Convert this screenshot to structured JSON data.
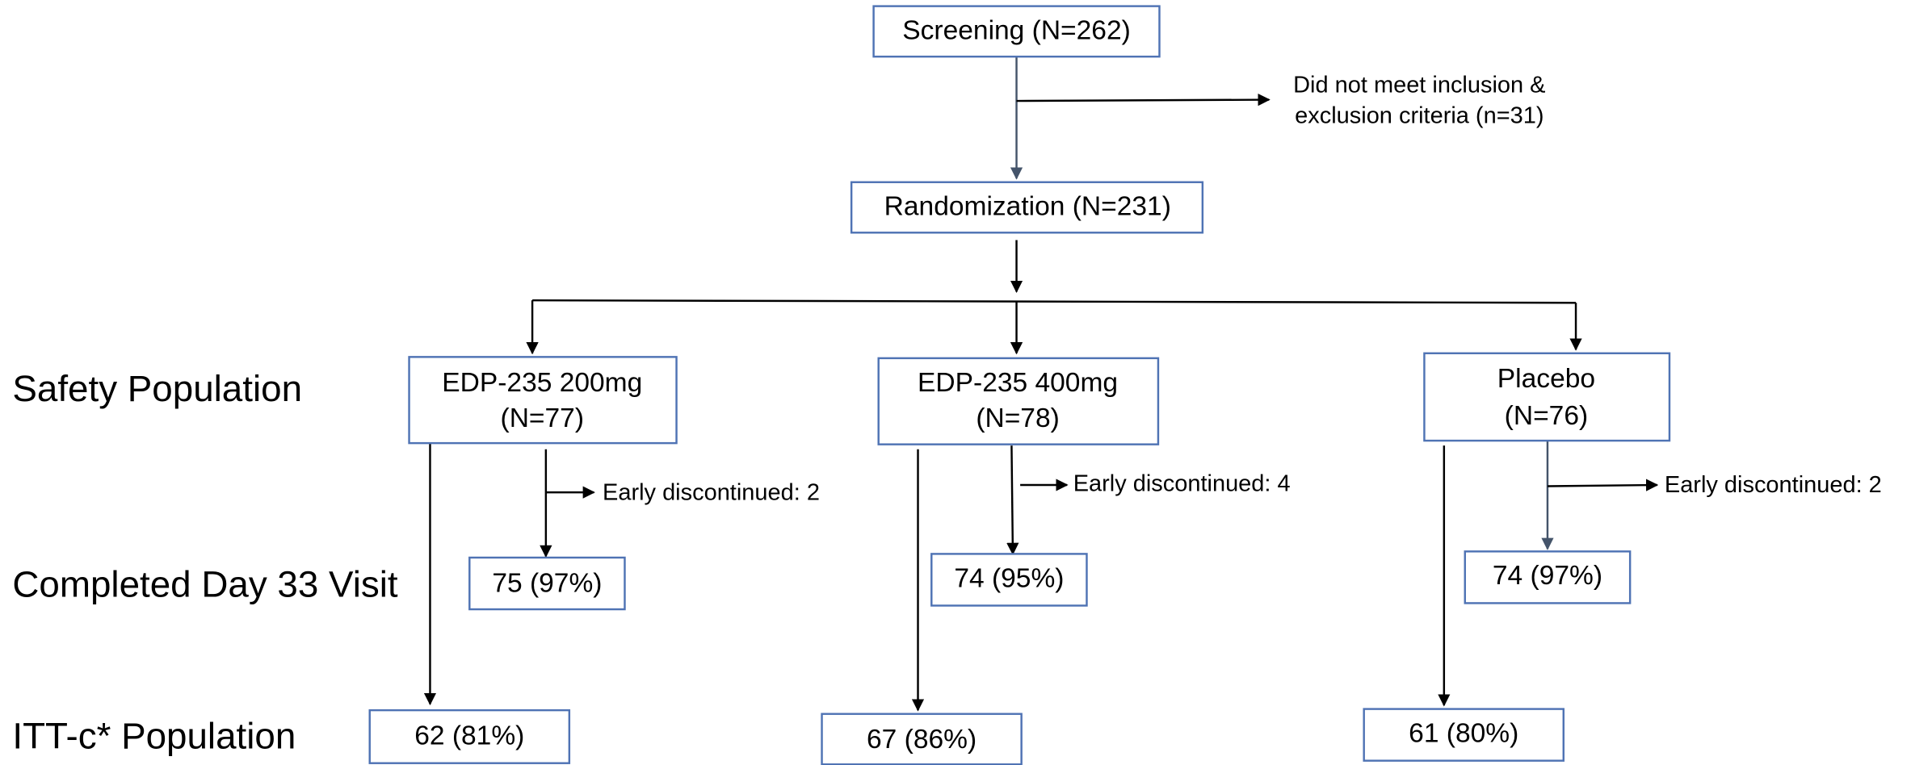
{
  "row_labels": [
    "Safety Population",
    "Completed Day 33 Visit",
    "ITT-c* Population"
  ],
  "nodes": [
    {
      "lines": [
        "Screening (N=262)"
      ]
    },
    {
      "lines": [
        "Randomization (N=231)"
      ]
    },
    {
      "lines": [
        "EDP-235 200mg",
        "(N=77)"
      ]
    },
    {
      "lines": [
        "EDP-235 400mg",
        "(N=78)"
      ]
    },
    {
      "lines": [
        "Placebo",
        "(N=76)"
      ]
    },
    {
      "lines": [
        "75 (97%)"
      ]
    },
    {
      "lines": [
        "74 (95%)"
      ]
    },
    {
      "lines": [
        "74 (97%)"
      ]
    },
    {
      "lines": [
        "62 (81%)"
      ]
    },
    {
      "lines": [
        "67 (86%)"
      ]
    },
    {
      "lines": [
        "61 (80%)"
      ]
    }
  ],
  "notes": [
    {
      "lines": [
        "Did not meet inclusion &",
        "exclusion criteria (n=31)"
      ]
    },
    {
      "lines": [
        "Early discontinued: 2"
      ]
    },
    {
      "lines": [
        "Early discontinued: 4"
      ]
    },
    {
      "lines": [
        "Early discontinued: 2"
      ]
    }
  ]
}
